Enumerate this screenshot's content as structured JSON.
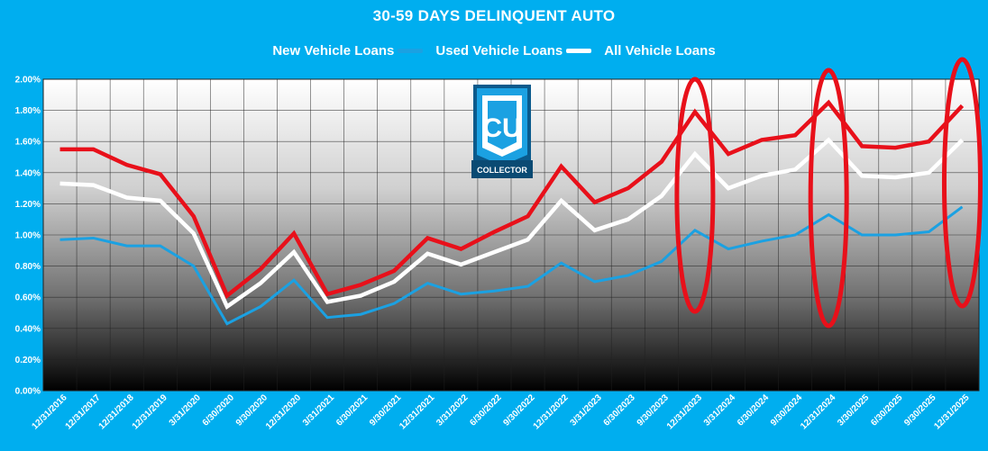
{
  "chart_data": {
    "type": "line",
    "title": "30-59 DAYS DELINQUENT AUTO",
    "xlabel": "",
    "ylabel": "",
    "ylim": [
      0,
      2.0
    ],
    "y_ticks": [
      "0.00%",
      "0.20%",
      "0.40%",
      "0.60%",
      "0.80%",
      "1.00%",
      "1.20%",
      "1.40%",
      "1.60%",
      "1.80%",
      "2.00%"
    ],
    "grid": true,
    "legend_position": "top-center",
    "categories": [
      "12/31/2016",
      "12/31/2017",
      "12/31/2018",
      "12/31/2019",
      "3/31/2020",
      "6/30/2020",
      "9/30/2020",
      "12/31/2020",
      "3/31/2021",
      "6/30/2021",
      "9/30/2021",
      "12/31/2021",
      "3/31/2022",
      "6/30/2022",
      "9/30/2022",
      "12/31/2022",
      "3/31/2023",
      "6/30/2023",
      "9/30/2023",
      "12/31/2023",
      "3/31/2024",
      "6/30/2024",
      "9/30/2024",
      "12/31/2024",
      "3/30/2025",
      "6/30/2025",
      "9/30/2025",
      "12/31/2025"
    ],
    "series": [
      {
        "name": "New Vehicle Loans",
        "color": "#1BA1E2",
        "values": [
          0.97,
          0.98,
          0.93,
          0.93,
          0.8,
          0.43,
          0.54,
          0.71,
          0.47,
          0.49,
          0.56,
          0.69,
          0.62,
          0.64,
          0.67,
          0.82,
          0.7,
          0.74,
          0.83,
          1.03,
          0.91,
          0.96,
          1.0,
          1.13,
          1.0,
          1.0,
          1.02,
          1.18
        ]
      },
      {
        "name": "Used Vehicle Loans",
        "color": "#E8101A",
        "values": [
          1.55,
          1.55,
          1.45,
          1.39,
          1.12,
          0.61,
          0.78,
          1.01,
          0.62,
          0.68,
          0.77,
          0.98,
          0.91,
          1.02,
          1.12,
          1.44,
          1.21,
          1.3,
          1.47,
          1.79,
          1.52,
          1.61,
          1.64,
          1.85,
          1.57,
          1.56,
          1.6,
          1.83
        ]
      },
      {
        "name": "All Vehicle Loans",
        "color": "#FFFFFF",
        "values": [
          1.33,
          1.32,
          1.24,
          1.22,
          1.01,
          0.54,
          0.69,
          0.89,
          0.57,
          0.61,
          0.7,
          0.88,
          0.81,
          0.89,
          0.97,
          1.22,
          1.03,
          1.1,
          1.25,
          1.52,
          1.3,
          1.38,
          1.42,
          1.61,
          1.38,
          1.37,
          1.4,
          1.61
        ]
      }
    ],
    "annotations": {
      "type": "ellipse",
      "color": "#E8101A",
      "highlighted_categories": [
        "12/31/2023",
        "12/31/2024",
        "12/31/2025"
      ]
    }
  },
  "logo": {
    "letters": "CU",
    "text": "COLLECTOR",
    "icon": "cu-collector-logo"
  }
}
